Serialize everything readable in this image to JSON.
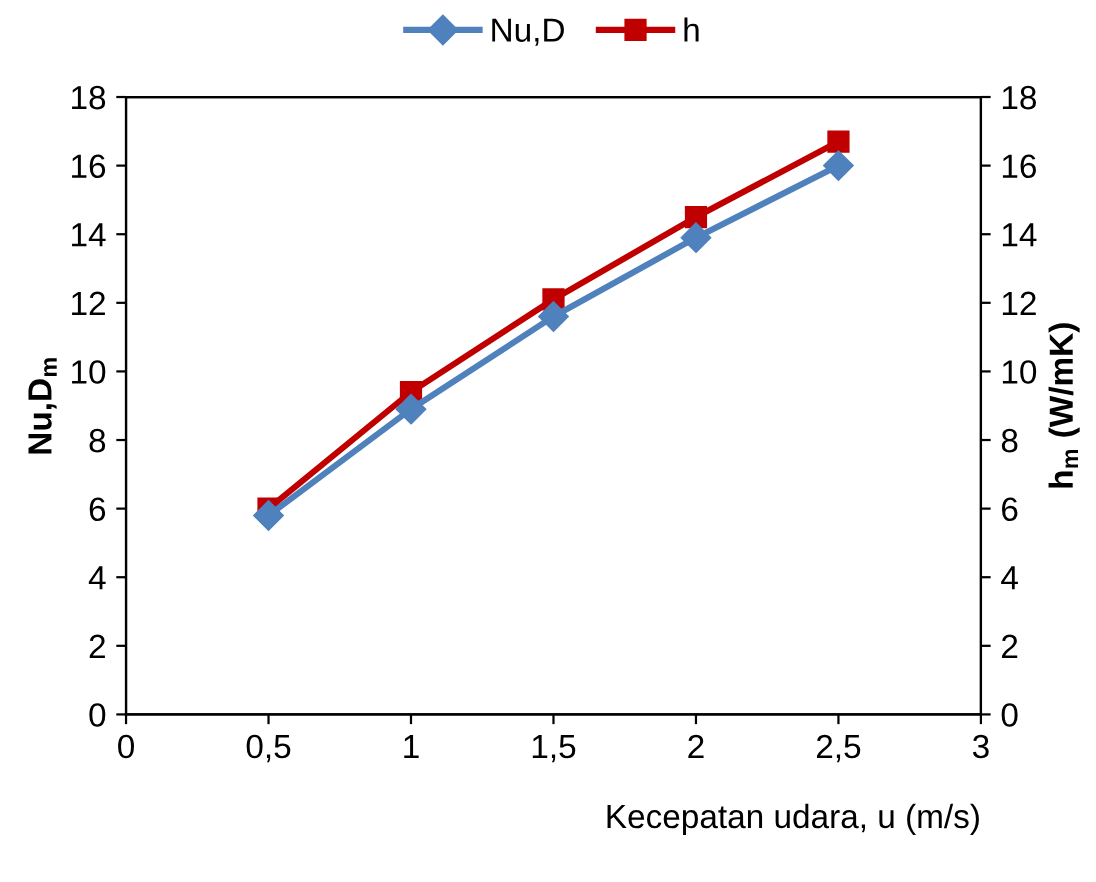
{
  "chart_data": {
    "type": "line",
    "x": [
      0.5,
      1,
      1.5,
      2,
      2.5
    ],
    "series": [
      {
        "name": "Nu,D",
        "color": "#4f81bd",
        "values": [
          5.8,
          8.9,
          11.6,
          13.9,
          16.0
        ],
        "marker": "diamond"
      },
      {
        "name": "h",
        "color": "#c00000",
        "values": [
          6.0,
          9.4,
          12.1,
          14.5,
          16.7
        ],
        "marker": "square",
        "axis": "y2"
      }
    ],
    "xlabel": "Kecepatan udara, u (m/s)",
    "ylabel": "Nu,D$_{m}$",
    "y2label": "h$_{m}$ (W/mK)",
    "xlim": [
      0,
      3
    ],
    "xticks": [
      0,
      {
        "value": 0.5,
        "label": "0,5"
      },
      1,
      {
        "value": 1.5,
        "label": "1,5"
      },
      2,
      {
        "value": 2.5,
        "label": "2,5"
      },
      3
    ],
    "ylim": [
      0,
      18
    ],
    "yticks": [
      0,
      2,
      4,
      6,
      8,
      10,
      12,
      14,
      16,
      18
    ],
    "y2lim": [
      0,
      18
    ],
    "y2ticks": [
      0,
      2,
      4,
      6,
      8,
      10,
      12,
      14,
      16,
      18
    ],
    "grid": false,
    "legend": "top",
    "line_style": "solid"
  }
}
